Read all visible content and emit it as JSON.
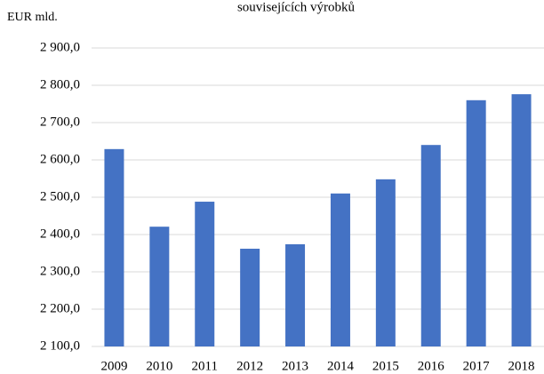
{
  "chart_data": {
    "type": "bar",
    "title": "souvisejících výrobků",
    "y_label": "EUR mld.",
    "categories": [
      "2009",
      "2010",
      "2011",
      "2012",
      "2013",
      "2014",
      "2015",
      "2016",
      "2017",
      "2018"
    ],
    "values": [
      2629,
      2421,
      2488,
      2362,
      2374,
      2510,
      2548,
      2640,
      2760,
      2776
    ],
    "color": "#4472c4",
    "ylim": [
      2100,
      2900
    ],
    "yticks": [
      {
        "value": 2100,
        "label": "2 100,0"
      },
      {
        "value": 2200,
        "label": "2 200,0"
      },
      {
        "value": 2300,
        "label": "2 300,0"
      },
      {
        "value": 2400,
        "label": "2 400,0"
      },
      {
        "value": 2500,
        "label": "2 500,0"
      },
      {
        "value": 2600,
        "label": "2 600,0"
      },
      {
        "value": 2700,
        "label": "2 700,0"
      },
      {
        "value": 2800,
        "label": "2 800,0"
      },
      {
        "value": 2900,
        "label": "2 900,0"
      }
    ],
    "grid": true
  }
}
